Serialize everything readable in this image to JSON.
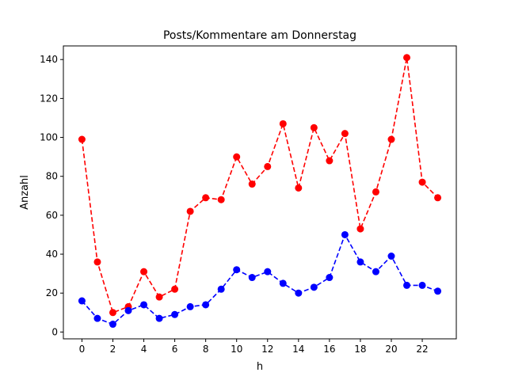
{
  "chart_data": {
    "type": "line",
    "title": "Posts/Kommentare am Donnerstag",
    "xlabel": "h",
    "ylabel": "Anzahl",
    "xlim": [
      -1.2,
      24.2
    ],
    "ylim": [
      -3.5,
      147
    ],
    "xticks": [
      0,
      2,
      4,
      6,
      8,
      10,
      12,
      14,
      16,
      18,
      20,
      22
    ],
    "yticks": [
      0,
      20,
      40,
      60,
      80,
      100,
      120,
      140
    ],
    "x": [
      0,
      1,
      2,
      3,
      4,
      5,
      6,
      7,
      8,
      9,
      10,
      11,
      12,
      13,
      14,
      15,
      16,
      17,
      18,
      19,
      20,
      21,
      22,
      23
    ],
    "series": [
      {
        "name": "Posts",
        "color": "#ff0000",
        "values": [
          99,
          36,
          10,
          13,
          31,
          18,
          22,
          62,
          69,
          68,
          90,
          76,
          85,
          107,
          74,
          105,
          88,
          102,
          53,
          72,
          99,
          141,
          77,
          69
        ]
      },
      {
        "name": "Kommentare",
        "color": "#0000ff",
        "values": [
          16,
          7,
          4,
          11,
          14,
          7,
          9,
          13,
          14,
          22,
          32,
          28,
          31,
          25,
          20,
          23,
          28,
          50,
          36,
          31,
          39,
          24,
          24,
          21
        ]
      }
    ]
  }
}
